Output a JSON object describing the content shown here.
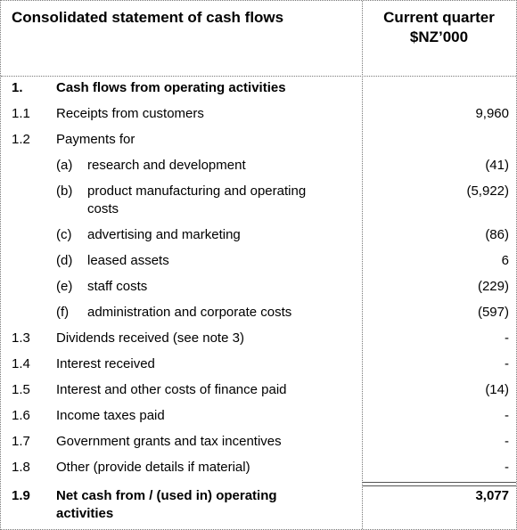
{
  "header": {
    "title": "Consolidated statement of cash flows",
    "column_title": [
      "Current quarter",
      "$NZ’000"
    ]
  },
  "section": {
    "num": "1.",
    "label": "Cash flows from operating activities"
  },
  "rows": [
    {
      "num": "1.1",
      "label": "Receipts from customers",
      "value": "9,960"
    },
    {
      "num": "1.2",
      "label": "Payments for",
      "items": [
        {
          "sub": "(a)",
          "label": "research and development",
          "value": "(41)"
        },
        {
          "sub": "(b)",
          "label": "product manufacturing and operating costs",
          "value": "(5,922)"
        },
        {
          "sub": "(c)",
          "label": "advertising and marketing",
          "value": "(86)"
        },
        {
          "sub": "(d)",
          "label": "leased assets",
          "value": "6"
        },
        {
          "sub": "(e)",
          "label": "staff costs",
          "value": "(229)"
        },
        {
          "sub": "(f)",
          "label": "administration and corporate costs",
          "value": "(597)"
        }
      ]
    },
    {
      "num": "1.3",
      "label": "Dividends received (see note 3)",
      "value": "-"
    },
    {
      "num": "1.4",
      "label": "Interest received",
      "value": "-"
    },
    {
      "num": "1.5",
      "label": "Interest and other costs of finance paid",
      "value": "(14)"
    },
    {
      "num": "1.6",
      "label": "Income taxes paid",
      "value": "-"
    },
    {
      "num": "1.7",
      "label": "Government grants and tax incentives",
      "value": "-"
    },
    {
      "num": "1.8",
      "label": "Other (provide details if material)",
      "value": "-"
    }
  ],
  "total": {
    "num": "1.9",
    "label": "Net cash from / (used in) operating activities",
    "value": "3,077"
  }
}
